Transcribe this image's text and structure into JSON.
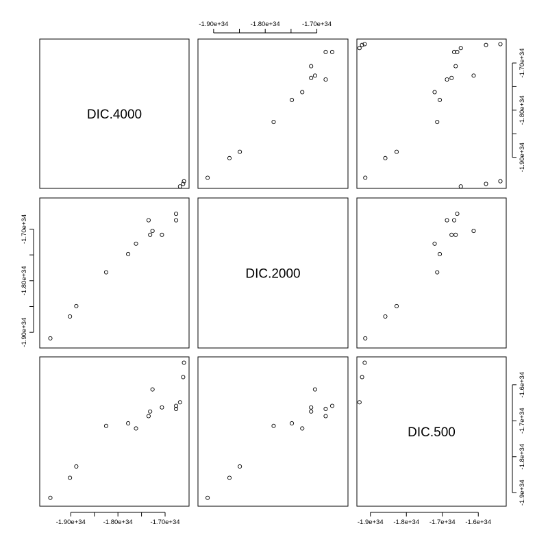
{
  "chart_data": {
    "type": "scatter",
    "title": "",
    "variables": [
      "DIC.4000",
      "DIC.2000",
      "DIC.500"
    ],
    "axes": {
      "DIC.4000": {
        "range": [
          -1.96e+34,
          -1.655e+34
        ],
        "ticks": [
          {
            "value": -1.9e+34,
            "label": "-1.90e+34"
          },
          {
            "value": -1.8e+34,
            "label": "-1.80e+34"
          },
          {
            "value": -1.7e+34,
            "label": "-1.70e+34"
          }
        ],
        "minor_ticks": [
          -1.85e+34,
          -1.75e+34
        ]
      },
      "DIC.2000": {
        "range": [
          -1.925e+34,
          -1.645e+34
        ],
        "ticks": [
          {
            "value": -1.9e+34,
            "label": "-1.90e+34"
          },
          {
            "value": -1.8e+34,
            "label": "-1.80e+34"
          },
          {
            "value": -1.7e+34,
            "label": "-1.70e+34"
          }
        ],
        "minor_ticks": [
          -1.85e+34,
          -1.75e+34
        ]
      },
      "DIC.500": {
        "range": [
          -1.93e+34,
          -1.53e+34
        ],
        "ticks": [
          {
            "value": -1.9e+34,
            "label": "-1.9e+34"
          },
          {
            "value": -1.8e+34,
            "label": "-1.8e+34"
          },
          {
            "value": -1.7e+34,
            "label": "-1.7e+34"
          },
          {
            "value": -1.6e+34,
            "label": "-1.6e+34"
          }
        ],
        "minor_ticks": []
      }
    },
    "points": [
      {
        "DIC.4000": -1.9433e+34,
        "DIC.2000": -1.9116e+34,
        "DIC.500": -1.9143e+34
      },
      {
        "DIC.4000": -1.9017e+34,
        "DIC.2000": -1.8693e+34,
        "DIC.500": -1.8586e+34
      },
      {
        "DIC.4000": -1.8883e+34,
        "DIC.2000": -1.8492e+34,
        "DIC.500": -1.8271e+34
      },
      {
        "DIC.4000": -1.825e+34,
        "DIC.2000": -1.7837e+34,
        "DIC.500": -1.7143e+34
      },
      {
        "DIC.4000": -1.7783e+34,
        "DIC.2000": -1.7484e+34,
        "DIC.500": -1.7071e+34
      },
      {
        "DIC.4000": -1.7617e+34,
        "DIC.2000": -1.7283e+34,
        "DIC.500": -1.7214e+34
      },
      {
        "DIC.4000": -1.735e+34,
        "DIC.2000": -1.6829e+34,
        "DIC.500": -1.6871e+34
      },
      {
        "DIC.4000": -1.7317e+34,
        "DIC.2000": -1.7111e+34,
        "DIC.500": -1.6743e+34
      },
      {
        "DIC.4000": -1.7267e+34,
        "DIC.2000": -1.7035e+34,
        "DIC.500": -1.6129e+34
      },
      {
        "DIC.4000": -1.7067e+34,
        "DIC.2000": -1.7111e+34,
        "DIC.500": -1.6629e+34
      },
      {
        "DIC.4000": -1.6767e+34,
        "DIC.2000": -1.6829e+34,
        "DIC.500": -1.6671e+34
      },
      {
        "DIC.4000": -1.6767e+34,
        "DIC.2000": -1.6703e+34,
        "DIC.500": -1.6586e+34
      },
      {
        "DIC.4000": -1.6683e+34,
        "DIC.2000": -1.6174e+34,
        "DIC.500": -1.6486e+34
      },
      {
        "DIC.4000": -1.6617e+34,
        "DIC.2000": -1.6124e+34,
        "DIC.500": -1.5786e+34
      },
      {
        "DIC.4000": -1.66e+34,
        "DIC.2000": -1.6073e+34,
        "DIC.500": -1.5386e+34
      }
    ]
  }
}
